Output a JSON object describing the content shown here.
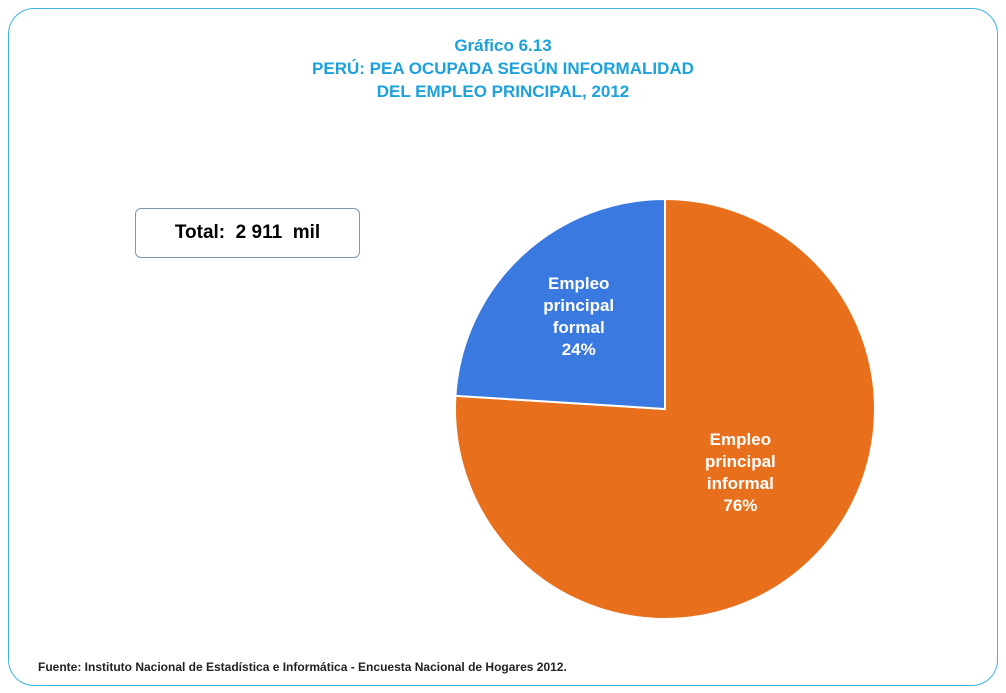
{
  "chart_data": {
    "type": "pie",
    "title": [
      "Gráfico  6.13",
      "PERÚ: PEA OCUPADA SEGÚN INFORMALIDAD",
      "DEL EMPLEO PRINCIPAL, 2012"
    ],
    "annotation": "Total:  2 911  mil",
    "source": "Fuente: Instituto Nacional de Estadística e Informática - Encuesta Nacional de Hogares 2012.",
    "categories": [
      "Empleo principal informal",
      "Empleo principal formal"
    ],
    "values": [
      76,
      24
    ],
    "value_labels": [
      "76%",
      "24%"
    ],
    "colors": [
      "#e8701c",
      "#3a7ae0"
    ]
  }
}
